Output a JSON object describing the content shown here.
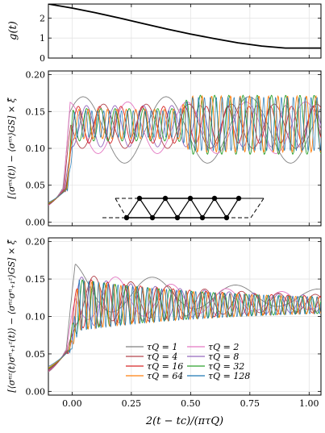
{
  "chart_data": [
    {
      "type": "line",
      "panel": "top",
      "ylabel": "g(t)",
      "xlim": [
        -0.1,
        1.05
      ],
      "ylim": [
        0,
        2.7
      ],
      "yticks": [
        0,
        1,
        2
      ],
      "xticks": [
        0.0,
        0.25,
        0.5,
        0.75,
        1.0
      ],
      "grid": true,
      "series": [
        {
          "x": [
            -0.1,
            0.0,
            0.1,
            0.2,
            0.3,
            0.4,
            0.5,
            0.6,
            0.7,
            0.8,
            0.9,
            1.0,
            1.05
          ],
          "values": [
            2.7,
            2.5,
            2.26,
            2.0,
            1.72,
            1.45,
            1.2,
            0.97,
            0.76,
            0.6,
            0.5,
            0.5,
            0.5
          ],
          "color": "#000000"
        }
      ]
    },
    {
      "type": "line",
      "panel": "middle",
      "ylabel": "[⟨σⁿˣ(t)⟩ − ⟨σⁿˣ⟩GS] × ξ̂",
      "xlim": [
        -0.1,
        1.05
      ],
      "ylim": [
        -0.005,
        0.205
      ],
      "yticks": [
        "0.00",
        "0.05",
        "0.10",
        "0.15",
        "0.20"
      ],
      "xticks": [
        0.0,
        0.25,
        0.5,
        0.75,
        1.0
      ],
      "grid": true,
      "inset": "zigzag spin ladder (triangular chain)",
      "series": [
        {
          "tau": 1,
          "color": "#808080",
          "plateau": 0.125,
          "osc_amp": 0.045,
          "period": 0.35
        },
        {
          "tau": 2,
          "color": "#e377c2",
          "plateau": 0.128,
          "osc_amp": 0.035,
          "period": 0.25
        },
        {
          "tau": 4,
          "color": "#b3444d",
          "plateau": 0.13,
          "osc_amp": 0.03,
          "period": 0.18
        },
        {
          "tau": 8,
          "color": "#9467bd",
          "plateau": 0.13,
          "osc_amp": 0.028,
          "period": 0.12
        },
        {
          "tau": 16,
          "color": "#d62728",
          "plateau": 0.132,
          "osc_amp": 0.025,
          "period": 0.09
        },
        {
          "tau": 32,
          "color": "#2ca02c",
          "plateau": 0.132,
          "osc_amp": 0.022,
          "period": 0.06
        },
        {
          "tau": 64,
          "color": "#ff7f0e",
          "plateau": 0.133,
          "osc_amp": 0.02,
          "period": 0.04
        },
        {
          "tau": 128,
          "color": "#1f77b4",
          "plateau": 0.133,
          "osc_amp": 0.018,
          "period": 0.025
        }
      ]
    },
    {
      "type": "line",
      "panel": "bottom",
      "ylabel": "[⟨σⁿᶻ(t)σⁿ₊₁ᶻ(t)⟩ − ⟨σⁿᶻσⁿ₊₁ᶻ⟩GS] × ξ̂",
      "xlabel": "2(t − tc)/(πτQ)",
      "xlim": [
        -0.1,
        1.05
      ],
      "ylim": [
        -0.005,
        0.205
      ],
      "yticks": [
        "0.00",
        "0.05",
        "0.10",
        "0.15",
        "0.20"
      ],
      "xticks": [
        "0.00",
        "0.25",
        "0.50",
        "0.75",
        "1.00"
      ],
      "grid": true,
      "legend_position": "lower-center",
      "series": [
        {
          "name": "τQ = 1",
          "tau": 1,
          "color": "#808080",
          "peak": 0.18,
          "end": 0.125
        },
        {
          "name": "τQ = 2",
          "tau": 2,
          "color": "#e377c2",
          "peak": 0.17,
          "end": 0.12
        },
        {
          "name": "τQ = 4",
          "tau": 4,
          "color": "#b3444d",
          "peak": 0.165,
          "end": 0.118
        },
        {
          "name": "τQ = 8",
          "tau": 8,
          "color": "#9467bd",
          "peak": 0.16,
          "end": 0.117
        },
        {
          "name": "τQ = 16",
          "tau": 16,
          "color": "#d62728",
          "peak": 0.158,
          "end": 0.116
        },
        {
          "name": "τQ = 32",
          "tau": 32,
          "color": "#2ca02c",
          "peak": 0.156,
          "end": 0.115
        },
        {
          "name": "τQ = 64",
          "tau": 64,
          "color": "#ff7f0e",
          "peak": 0.155,
          "end": 0.115
        },
        {
          "name": "τQ = 128",
          "tau": 128,
          "color": "#1f77b4",
          "peak": 0.155,
          "end": 0.115
        }
      ]
    }
  ]
}
